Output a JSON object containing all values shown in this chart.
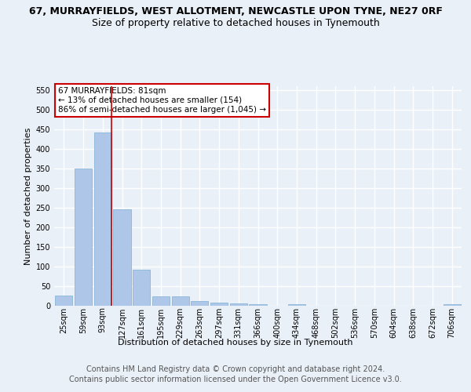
{
  "title_line1": "67, MURRAYFIELDS, WEST ALLOTMENT, NEWCASTLE UPON TYNE, NE27 0RF",
  "title_line2": "Size of property relative to detached houses in Tynemouth",
  "xlabel": "Distribution of detached houses by size in Tynemouth",
  "ylabel": "Number of detached properties",
  "categories": [
    "25sqm",
    "59sqm",
    "93sqm",
    "127sqm",
    "161sqm",
    "195sqm",
    "229sqm",
    "263sqm",
    "297sqm",
    "331sqm",
    "366sqm",
    "400sqm",
    "434sqm",
    "468sqm",
    "502sqm",
    "536sqm",
    "570sqm",
    "604sqm",
    "638sqm",
    "672sqm",
    "706sqm"
  ],
  "values": [
    27,
    350,
    443,
    246,
    93,
    24,
    24,
    13,
    9,
    6,
    5,
    0,
    4,
    0,
    0,
    0,
    0,
    0,
    0,
    0,
    4
  ],
  "bar_color": "#aec6e8",
  "bar_edge_color": "#7bafd4",
  "vline_color": "#cc0000",
  "property_bin_index": 2,
  "annotation_text": "67 MURRAYFIELDS: 81sqm\n← 13% of detached houses are smaller (154)\n86% of semi-detached houses are larger (1,045) →",
  "annotation_box_color": "#ffffff",
  "annotation_box_edge": "#cc0000",
  "ylim": [
    0,
    560
  ],
  "yticks": [
    0,
    50,
    100,
    150,
    200,
    250,
    300,
    350,
    400,
    450,
    500,
    550
  ],
  "bg_color": "#eaf0f8",
  "plot_bg_color": "#eaf0f8",
  "grid_color": "#ffffff",
  "title_fontsize": 9,
  "subtitle_fontsize": 9,
  "axis_label_fontsize": 8,
  "tick_fontsize": 7,
  "annotation_fontsize": 7.5,
  "footer_fontsize": 7,
  "footer_line1": "Contains HM Land Registry data © Crown copyright and database right 2024.",
  "footer_line2": "Contains public sector information licensed under the Open Government Licence v3.0."
}
